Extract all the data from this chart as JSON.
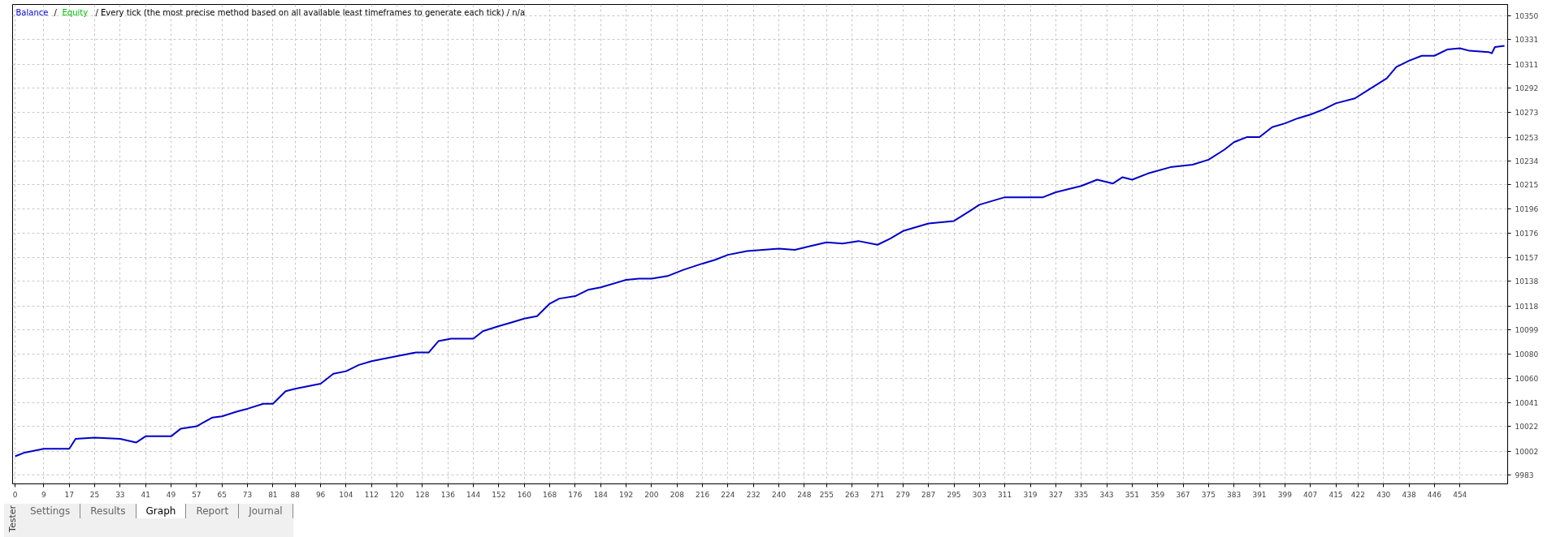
{
  "chart_data": {
    "type": "line",
    "title": "/ Every tick (the most precise method based on all available least timeframes to generate each tick) / n/a",
    "x": [
      0,
      3,
      9,
      17,
      19,
      25,
      33,
      38,
      41,
      49,
      52,
      57,
      62,
      65,
      70,
      73,
      78,
      81,
      85,
      88,
      96,
      100,
      104,
      108,
      112,
      120,
      126,
      130,
      133,
      137,
      144,
      147,
      152,
      156,
      160,
      164,
      168,
      171,
      176,
      180,
      184,
      192,
      196,
      200,
      205,
      210,
      216,
      220,
      224,
      230,
      235,
      240,
      245,
      250,
      255,
      260,
      265,
      271,
      275,
      279,
      287,
      295,
      300,
      303,
      311,
      319,
      323,
      327,
      335,
      340,
      345,
      348,
      351,
      356,
      363,
      370,
      375,
      380,
      383,
      387,
      391,
      395,
      399,
      403,
      407,
      411,
      415,
      421,
      426,
      431,
      434,
      438,
      442,
      446,
      450,
      454,
      457,
      463,
      464,
      465,
      468
    ],
    "series": [
      {
        "name": "Balance",
        "color": "#0000c8",
        "values": [
          9998,
          10001,
          10004,
          10004,
          10012,
          10013,
          10012,
          10009,
          10014,
          10014,
          10020,
          10022,
          10029,
          10030,
          10034,
          10036,
          10040,
          10040,
          10050,
          10052,
          10056,
          10064,
          10066,
          10071,
          10074,
          10078,
          10081,
          10081,
          10090,
          10092,
          10092,
          10098,
          10102,
          10105,
          10108,
          10110,
          10120,
          10124,
          10126,
          10131,
          10133,
          10139,
          10140,
          10140,
          10142,
          10147,
          10152,
          10155,
          10159,
          10162,
          10163,
          10164,
          10163,
          10166,
          10169,
          10168,
          10170,
          10167,
          10172,
          10178,
          10184,
          10186,
          10194,
          10199,
          10205,
          10205,
          10205,
          10209,
          10214,
          10219,
          10216,
          10221,
          10219,
          10224,
          10229,
          10231,
          10235,
          10243,
          10249,
          10253,
          10253,
          10261,
          10264,
          10268,
          10271,
          10275,
          10280,
          10284,
          10292,
          10300,
          10309,
          10314,
          10318,
          10318,
          10323,
          10324,
          10322,
          10321,
          10320,
          10325,
          10326
        ]
      },
      {
        "name": "Equity",
        "color": "#00c000",
        "values": [
          null,
          null,
          null,
          null,
          null,
          null,
          null,
          null,
          null,
          null,
          null,
          null,
          null,
          null,
          null,
          null,
          null,
          null,
          null,
          null,
          null,
          null,
          null,
          null,
          null,
          null,
          null,
          null,
          null,
          null,
          null,
          null,
          null,
          null,
          null,
          null,
          null,
          null,
          null,
          null,
          null,
          null,
          null,
          null,
          null,
          null,
          null,
          null,
          null,
          null,
          null,
          null,
          null,
          null,
          null,
          null,
          null,
          null,
          null,
          null,
          null,
          null,
          null,
          null,
          null,
          null,
          null,
          null,
          null,
          null,
          null,
          null,
          null,
          null,
          null,
          null,
          null,
          null,
          null,
          null,
          null,
          null,
          null,
          null,
          null,
          null,
          null,
          null,
          null,
          null,
          null,
          null,
          null,
          null,
          null,
          null,
          null,
          null,
          null,
          null,
          null
        ]
      }
    ],
    "xlim": [
      -0.8,
      469
    ],
    "ylim": [
      9976,
      10359
    ],
    "xticks": [
      0,
      9,
      17,
      25,
      33,
      41,
      49,
      57,
      65,
      73,
      81,
      88,
      96,
      104,
      112,
      120,
      128,
      136,
      144,
      152,
      160,
      168,
      176,
      184,
      192,
      200,
      208,
      216,
      224,
      232,
      240,
      248,
      255,
      263,
      271,
      279,
      287,
      295,
      303,
      311,
      319,
      327,
      335,
      343,
      351,
      359,
      367,
      375,
      383,
      391,
      399,
      407,
      415,
      422,
      430,
      438,
      446,
      454
    ],
    "yticks": [
      9983,
      10002,
      10022,
      10041,
      10060,
      10080,
      10099,
      10118,
      10138,
      10157,
      10176,
      10196,
      10215,
      10234,
      10253,
      10273,
      10292,
      10311,
      10331,
      10350
    ],
    "grid": true,
    "legend": "top left",
    "line_style": "solid",
    "marker": "none",
    "annotations": [
      "Tester",
      "/",
      "Settings",
      "Results",
      "Graph",
      "Report",
      "Journal"
    ]
  }
}
